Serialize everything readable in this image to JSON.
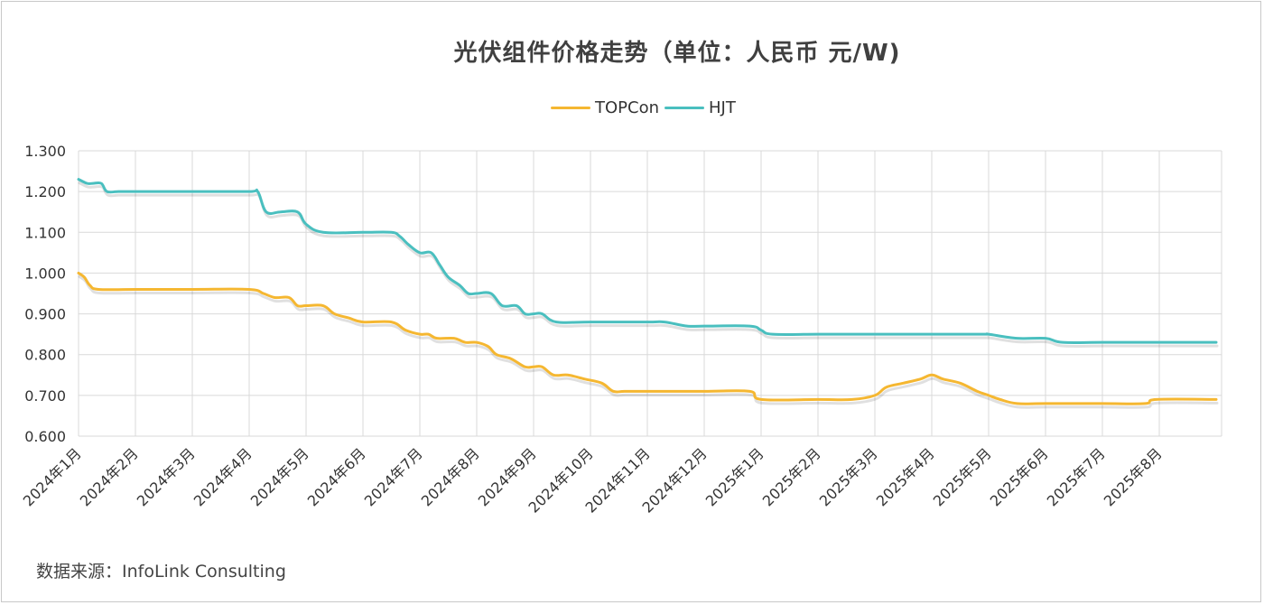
{
  "chart_data": {
    "type": "line",
    "title": "光伏组件价格走势（单位：人民币 元/W)",
    "source": "数据来源：InfoLink Consulting",
    "ylim": [
      0.6,
      1.3
    ],
    "yticks": [
      "0.600",
      "0.700",
      "0.800",
      "0.900",
      "1.000",
      "1.100",
      "1.200",
      "1.300"
    ],
    "categories": [
      "2024年1月",
      "2024年2月",
      "2024年3月",
      "2024年4月",
      "2024年5月",
      "2024年6月",
      "2024年7月",
      "2024年8月",
      "2024年9月",
      "2024年10月",
      "2024年11月",
      "2024年12月",
      "2025年1月",
      "2025年2月",
      "2025年3月",
      "2025年4月",
      "2025年5月",
      "2025年6月",
      "2025年7月",
      "2025年8月"
    ],
    "grid": true,
    "legend_position": "top-center",
    "series": [
      {
        "name": "TOPCon",
        "color": "#f5b731",
        "points": [
          [
            0,
            1.0
          ],
          [
            0.1,
            0.99
          ],
          [
            0.2,
            0.97
          ],
          [
            0.35,
            0.96
          ],
          [
            1,
            0.96
          ],
          [
            2,
            0.96
          ],
          [
            3,
            0.96
          ],
          [
            3.25,
            0.95
          ],
          [
            3.45,
            0.94
          ],
          [
            3.7,
            0.94
          ],
          [
            3.85,
            0.92
          ],
          [
            4,
            0.92
          ],
          [
            4.3,
            0.92
          ],
          [
            4.5,
            0.9
          ],
          [
            4.75,
            0.89
          ],
          [
            5,
            0.88
          ],
          [
            5.5,
            0.88
          ],
          [
            5.75,
            0.86
          ],
          [
            6,
            0.85
          ],
          [
            6.15,
            0.85
          ],
          [
            6.3,
            0.84
          ],
          [
            6.6,
            0.84
          ],
          [
            6.8,
            0.83
          ],
          [
            7,
            0.83
          ],
          [
            7.2,
            0.82
          ],
          [
            7.35,
            0.8
          ],
          [
            7.6,
            0.79
          ],
          [
            7.85,
            0.77
          ],
          [
            8,
            0.77
          ],
          [
            8.15,
            0.77
          ],
          [
            8.35,
            0.75
          ],
          [
            8.6,
            0.75
          ],
          [
            8.9,
            0.74
          ],
          [
            9.2,
            0.73
          ],
          [
            9.4,
            0.71
          ],
          [
            9.6,
            0.71
          ],
          [
            10,
            0.71
          ],
          [
            11,
            0.71
          ],
          [
            11.8,
            0.71
          ],
          [
            12,
            0.69
          ],
          [
            13,
            0.69
          ],
          [
            13.6,
            0.69
          ],
          [
            14,
            0.7
          ],
          [
            14.2,
            0.72
          ],
          [
            14.5,
            0.73
          ],
          [
            14.8,
            0.74
          ],
          [
            15,
            0.75
          ],
          [
            15.2,
            0.74
          ],
          [
            15.5,
            0.73
          ],
          [
            15.8,
            0.71
          ],
          [
            16,
            0.7
          ],
          [
            16.2,
            0.69
          ],
          [
            16.5,
            0.68
          ],
          [
            17,
            0.68
          ],
          [
            18,
            0.68
          ],
          [
            18.75,
            0.68
          ],
          [
            18.95,
            0.69
          ],
          [
            20,
            0.69
          ]
        ]
      },
      {
        "name": "HJT",
        "color": "#4abfbf",
        "points": [
          [
            0,
            1.23
          ],
          [
            0.15,
            1.22
          ],
          [
            0.25,
            1.22
          ],
          [
            0.4,
            1.22
          ],
          [
            0.5,
            1.2
          ],
          [
            0.7,
            1.2
          ],
          [
            1,
            1.2
          ],
          [
            2,
            1.2
          ],
          [
            3,
            1.2
          ],
          [
            3.15,
            1.2
          ],
          [
            3.3,
            1.15
          ],
          [
            3.55,
            1.15
          ],
          [
            3.85,
            1.15
          ],
          [
            4,
            1.12
          ],
          [
            4.3,
            1.1
          ],
          [
            5,
            1.1
          ],
          [
            5.5,
            1.1
          ],
          [
            5.65,
            1.09
          ],
          [
            5.8,
            1.07
          ],
          [
            6,
            1.05
          ],
          [
            6.2,
            1.05
          ],
          [
            6.35,
            1.02
          ],
          [
            6.5,
            0.99
          ],
          [
            6.7,
            0.97
          ],
          [
            6.85,
            0.95
          ],
          [
            7,
            0.95
          ],
          [
            7.25,
            0.95
          ],
          [
            7.45,
            0.92
          ],
          [
            7.7,
            0.92
          ],
          [
            7.85,
            0.9
          ],
          [
            8,
            0.9
          ],
          [
            8.15,
            0.9
          ],
          [
            8.4,
            0.88
          ],
          [
            9,
            0.88
          ],
          [
            10,
            0.88
          ],
          [
            10.3,
            0.88
          ],
          [
            10.7,
            0.87
          ],
          [
            11,
            0.87
          ],
          [
            11.8,
            0.87
          ],
          [
            12,
            0.86
          ],
          [
            12.2,
            0.85
          ],
          [
            13,
            0.85
          ],
          [
            14,
            0.85
          ],
          [
            15,
            0.85
          ],
          [
            15.9,
            0.85
          ],
          [
            16,
            0.85
          ],
          [
            16.5,
            0.84
          ],
          [
            17,
            0.84
          ],
          [
            17.3,
            0.83
          ],
          [
            18,
            0.83
          ],
          [
            19,
            0.83
          ],
          [
            20,
            0.83
          ]
        ]
      }
    ]
  }
}
